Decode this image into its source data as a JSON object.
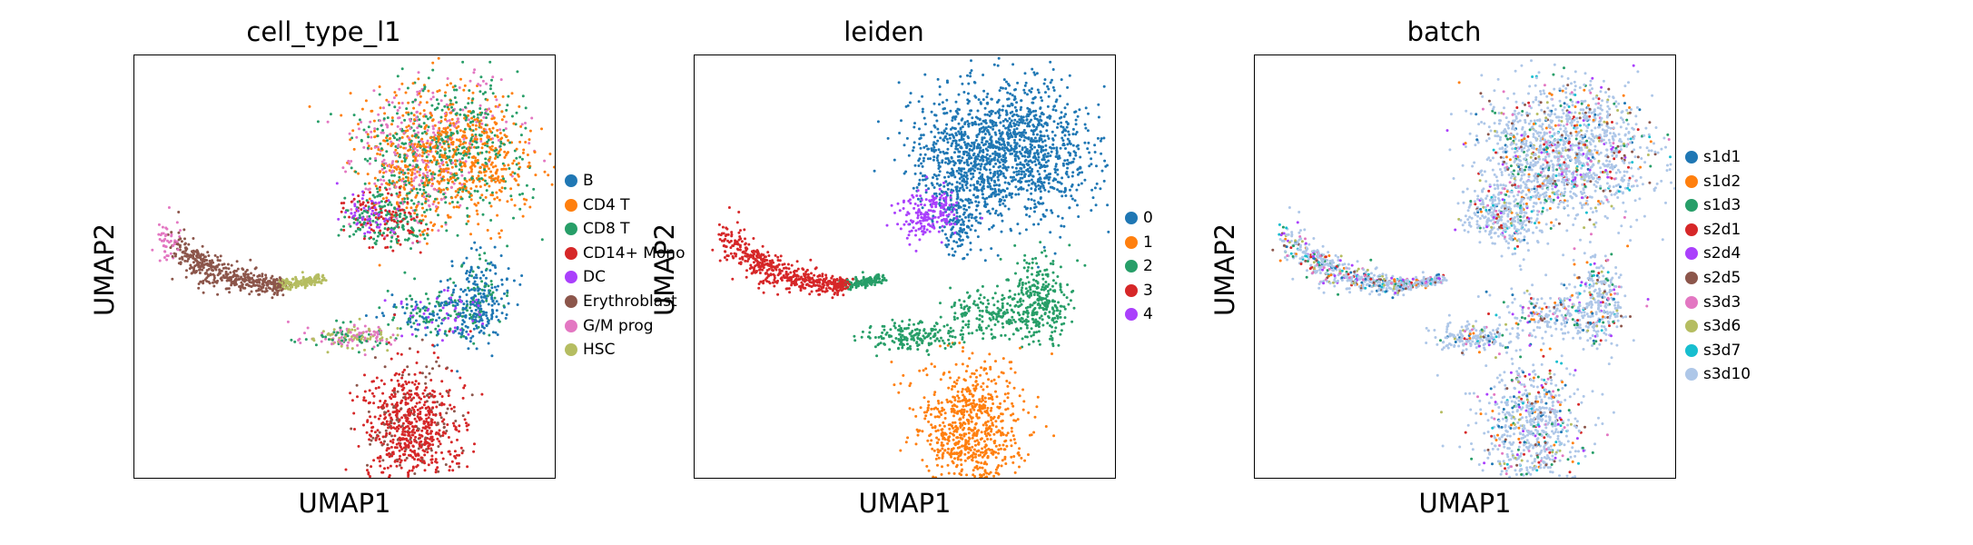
{
  "chart_data": [
    {
      "type": "scatter",
      "title": "cell_type_l1",
      "xlabel": "UMAP1",
      "ylabel": "UMAP2",
      "grid": false,
      "legend_placement": "right",
      "series": [
        {
          "name": "B",
          "color": "#1f77b4"
        },
        {
          "name": "CD4 T",
          "color": "#ff7f0e"
        },
        {
          "name": "CD8 T",
          "color": "#279e68"
        },
        {
          "name": "CD14+ Mono",
          "color": "#d62728"
        },
        {
          "name": "DC",
          "color": "#aa40fc"
        },
        {
          "name": "Erythroblast",
          "color": "#8c564b"
        },
        {
          "name": "G/M prog",
          "color": "#e377c2"
        },
        {
          "name": "HSC",
          "color": "#b5bd61"
        }
      ]
    },
    {
      "type": "scatter",
      "title": "leiden",
      "xlabel": "UMAP1",
      "ylabel": "UMAP2",
      "grid": false,
      "legend_placement": "right",
      "series": [
        {
          "name": "0",
          "color": "#1f77b4"
        },
        {
          "name": "1",
          "color": "#ff7f0e"
        },
        {
          "name": "2",
          "color": "#279e68"
        },
        {
          "name": "3",
          "color": "#d62728"
        },
        {
          "name": "4",
          "color": "#aa40fc"
        }
      ]
    },
    {
      "type": "scatter",
      "title": "batch",
      "xlabel": "UMAP1",
      "ylabel": "UMAP2",
      "grid": false,
      "legend_placement": "right",
      "series": [
        {
          "name": "s1d1",
          "color": "#1f77b4"
        },
        {
          "name": "s1d2",
          "color": "#ff7f0e"
        },
        {
          "name": "s1d3",
          "color": "#279e68"
        },
        {
          "name": "s2d1",
          "color": "#d62728"
        },
        {
          "name": "s2d4",
          "color": "#aa40fc"
        },
        {
          "name": "s2d5",
          "color": "#8c564b"
        },
        {
          "name": "s3d3",
          "color": "#e377c2"
        },
        {
          "name": "s3d6",
          "color": "#b5bd61"
        },
        {
          "name": "s3d7",
          "color": "#17becf"
        },
        {
          "name": "s3d10",
          "color": "#aec7e8"
        }
      ]
    }
  ]
}
